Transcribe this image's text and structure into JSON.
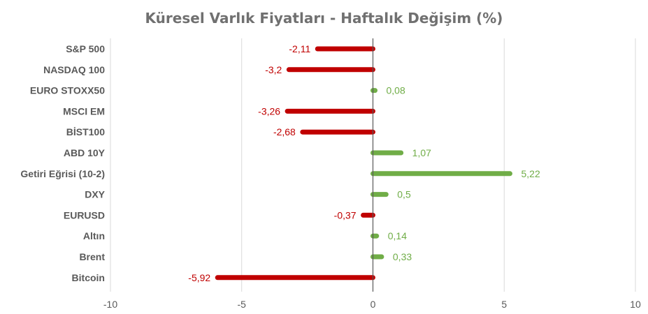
{
  "chart_data": {
    "type": "bar",
    "orientation": "horizontal",
    "title": "Küresel Varlık Fiyatları - Haftalık Değişim (%)",
    "categories": [
      "S&P 500",
      "NASDAQ 100",
      "EURO STOXX50",
      "MSCI EM",
      "BİST100",
      "ABD 10Y",
      "Getiri Eğrisi (10-2)",
      "DXY",
      "EURUSD",
      "Altın",
      "Brent",
      "Bitcoin"
    ],
    "values": [
      -2.11,
      -3.2,
      0.08,
      -3.26,
      -2.68,
      1.07,
      5.22,
      0.5,
      -0.37,
      0.14,
      0.33,
      -5.92
    ],
    "data_labels": [
      "-2,11",
      "-3,2",
      "0,08",
      "-3,26",
      "-2,68",
      "1,07",
      "5,22",
      "0,5",
      "-0,37",
      "0,14",
      "0,33",
      "-5,92"
    ],
    "xlim": [
      -10,
      10
    ],
    "x_ticks": [
      -10,
      -5,
      0,
      5,
      10
    ],
    "x_tick_labels": [
      "-10",
      "-5",
      "0",
      "5",
      "10"
    ],
    "grid": "vertical",
    "colors": {
      "negative": "#C00000",
      "positive": "#70AD47",
      "grid": "#D9D9D9",
      "zero_line": "#595959",
      "title": "#707070"
    }
  }
}
